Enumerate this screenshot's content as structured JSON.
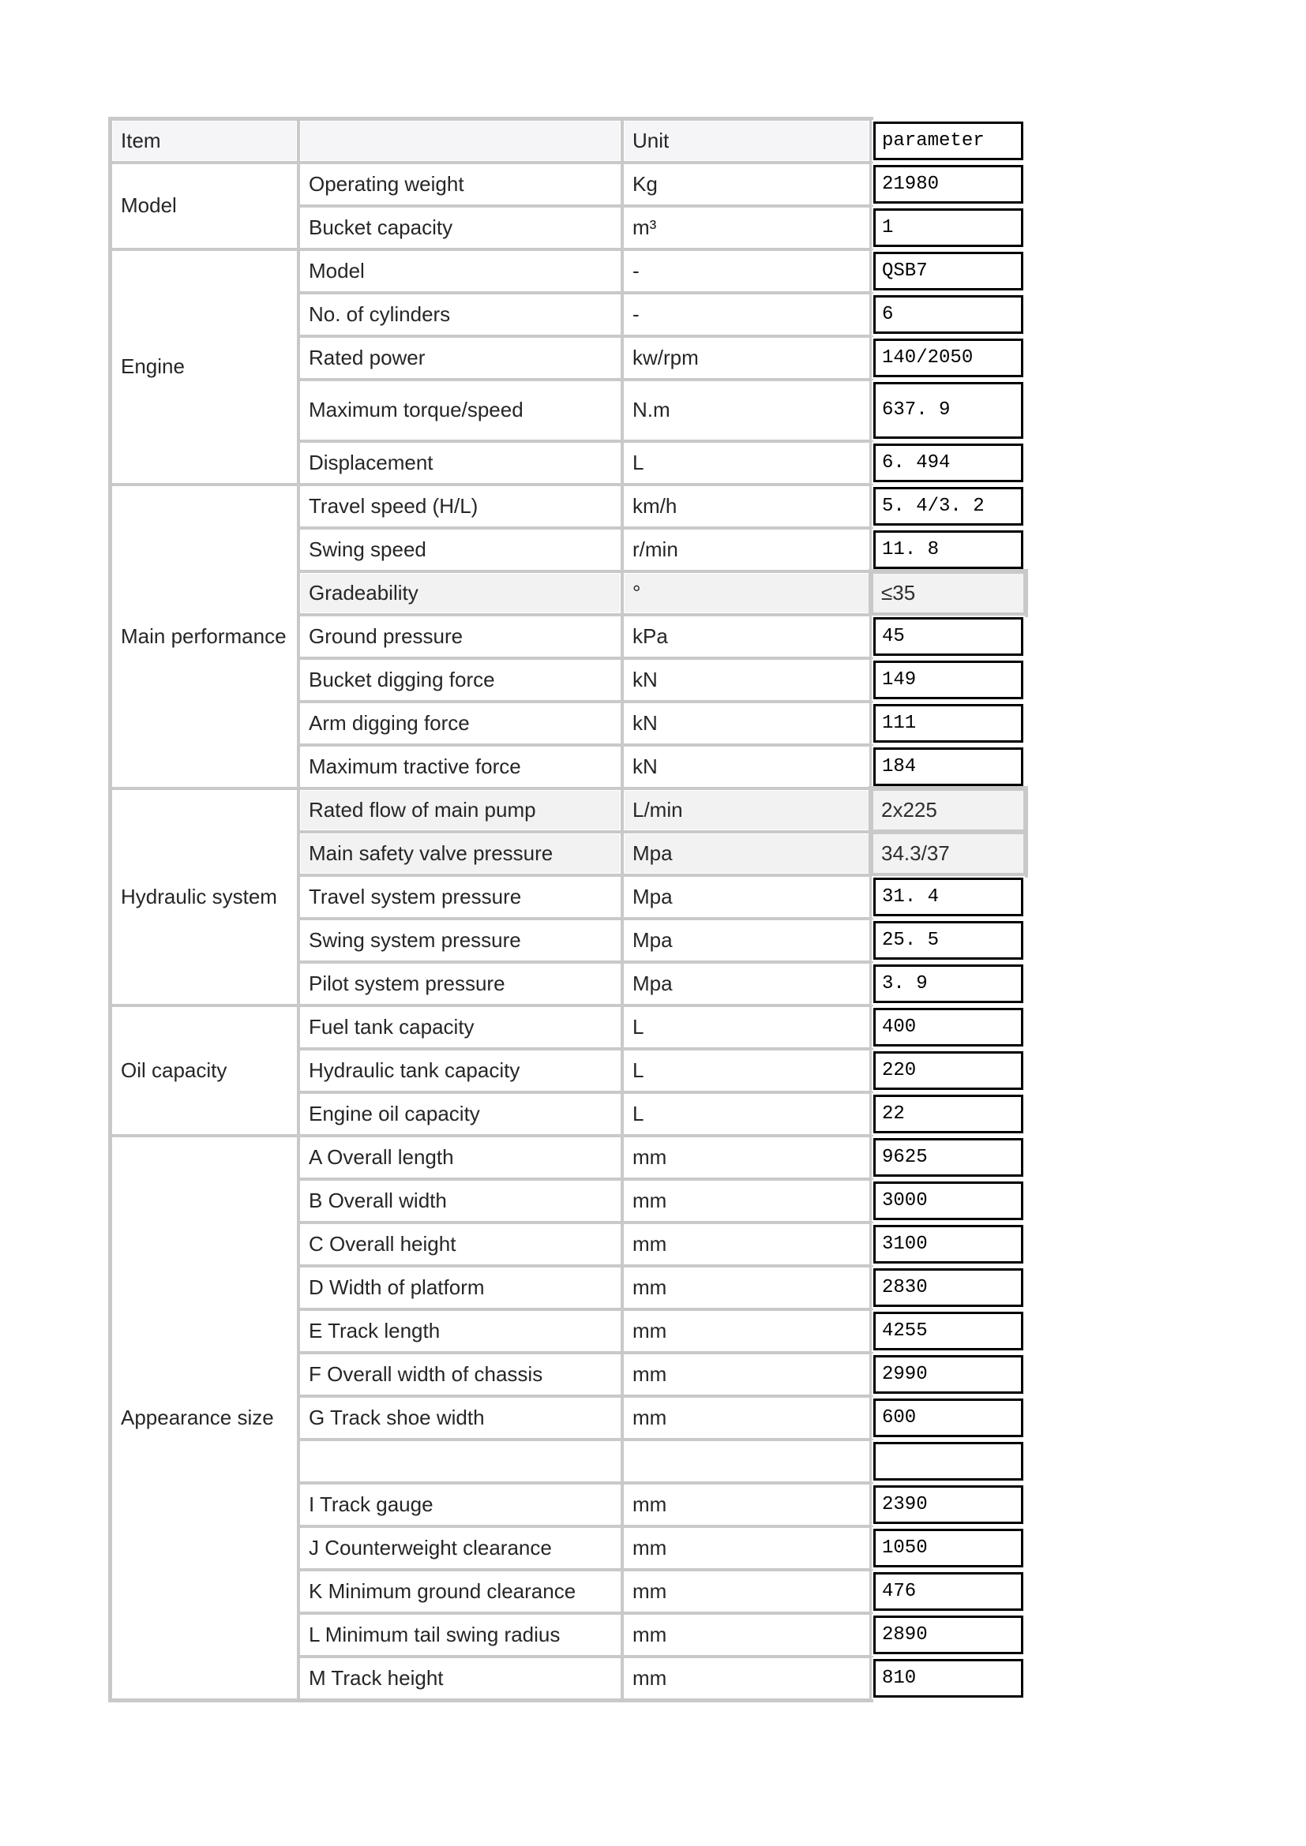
{
  "header": {
    "item": "Item",
    "sub": "",
    "unit": "Unit",
    "parameter": "parameter"
  },
  "sections": [
    {
      "label": "Model",
      "rows": [
        {
          "name": "Operating weight",
          "unit": "Kg",
          "value": "21980"
        },
        {
          "name": "Bucket capacity",
          "unit": "m³",
          "value": "1"
        }
      ]
    },
    {
      "label": "Engine",
      "rows": [
        {
          "name": "Model",
          "unit": "-",
          "value": "QSB7"
        },
        {
          "name": "No. of cylinders",
          "unit": "-",
          "value": "6"
        },
        {
          "name": "Rated power",
          "unit": "kw/rpm",
          "value": "140/2050"
        },
        {
          "name": "Maximum torque/speed",
          "unit": "N.m",
          "value": "637. 9",
          "tall": true
        },
        {
          "name": "Displacement",
          "unit": "L",
          "value": "6. 494"
        }
      ]
    },
    {
      "label": "Main performance",
      "rows": [
        {
          "name": "Travel speed (H/L)",
          "unit": "km/h",
          "value": "5. 4/3. 2"
        },
        {
          "name": "Swing speed",
          "unit": "r/min",
          "value": "11. 8"
        },
        {
          "name": "Gradeability",
          "unit": "°",
          "value": "≤35",
          "plain": true
        },
        {
          "name": "Ground pressure",
          "unit": "kPa",
          "value": "45"
        },
        {
          "name": "Bucket digging force",
          "unit": "kN",
          "value": "149"
        },
        {
          "name": "Arm digging force",
          "unit": "kN",
          "value": "111"
        },
        {
          "name": "Maximum tractive force",
          "unit": "kN",
          "value": "184"
        }
      ]
    },
    {
      "label": "Hydraulic system",
      "rows": [
        {
          "name": "Rated flow of main pump",
          "unit": "L/min",
          "value": "2x225",
          "plain": true
        },
        {
          "name": "Main safety valve pressure",
          "unit": "Mpa",
          "value": "34.3/37",
          "plain": true
        },
        {
          "name": "Travel system pressure",
          "unit": "Mpa",
          "value": "31. 4"
        },
        {
          "name": "Swing system pressure",
          "unit": "Mpa",
          "value": "25. 5"
        },
        {
          "name": "Pilot system pressure",
          "unit": "Mpa",
          "value": "3. 9"
        }
      ]
    },
    {
      "label": "Oil capacity",
      "rows": [
        {
          "name": "Fuel tank capacity",
          "unit": "L",
          "value": "400"
        },
        {
          "name": "Hydraulic tank capacity",
          "unit": "L",
          "value": "220"
        },
        {
          "name": "Engine oil capacity",
          "unit": "L",
          "value": "22"
        }
      ]
    },
    {
      "label": "Appearance size",
      "rows": [
        {
          "name": "A Overall length",
          "unit": "mm",
          "value": "9625"
        },
        {
          "name": "B Overall width",
          "unit": "mm",
          "value": "3000"
        },
        {
          "name": "C Overall height",
          "unit": "mm",
          "value": "3100"
        },
        {
          "name": "D Width of platform",
          "unit": "mm",
          "value": "2830"
        },
        {
          "name": "E Track length",
          "unit": "mm",
          "value": "4255"
        },
        {
          "name": "F Overall width of chassis",
          "unit": "mm",
          "value": "2990"
        },
        {
          "name": "G Track shoe width",
          "unit": "mm",
          "value": "600"
        },
        {
          "name": "",
          "unit": "",
          "value": ""
        },
        {
          "name": "I Track gauge",
          "unit": "mm",
          "value": "2390"
        },
        {
          "name": "J Counterweight clearance",
          "unit": "mm",
          "value": "1050"
        },
        {
          "name": "K Minimum ground clearance",
          "unit": "mm",
          "value": "476"
        },
        {
          "name": "L Minimum tail swing radius",
          "unit": "mm",
          "value": "2890"
        },
        {
          "name": "M Track height",
          "unit": "mm",
          "value": "810"
        }
      ]
    }
  ],
  "colors": {
    "grid_gray": "#c9c9c9",
    "header_bg": "#f5f5f8",
    "param_border": "#000000",
    "plain_row_bg": "#f2f2f3"
  }
}
